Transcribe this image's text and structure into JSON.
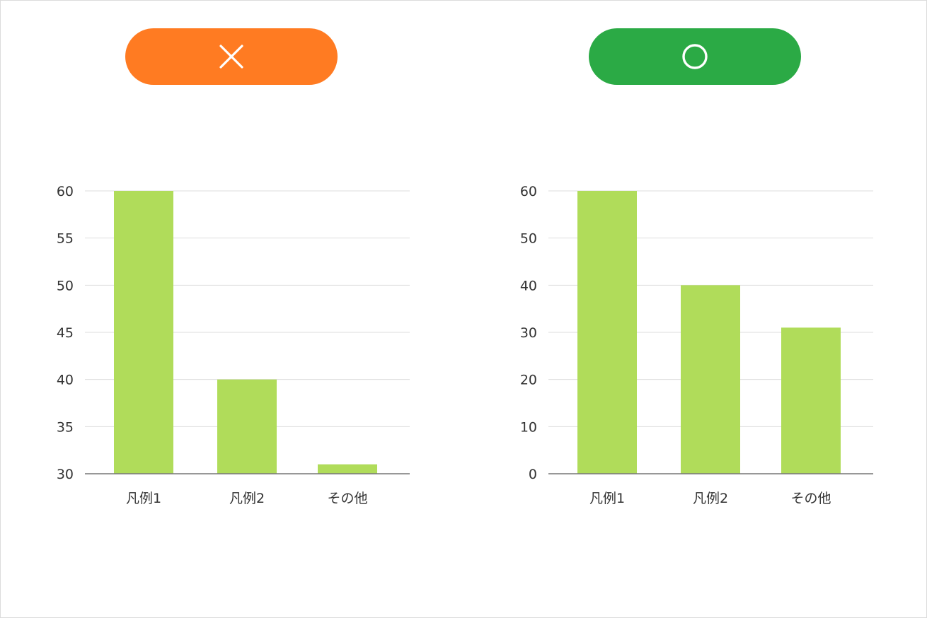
{
  "badges": {
    "bad": {
      "icon": "cross-icon",
      "color": "#FF7B22"
    },
    "good": {
      "icon": "circle-icon",
      "color": "#2BAA45"
    }
  },
  "colors": {
    "bar": "#B0DC5A",
    "grid": "#DDDDDD",
    "axis": "#777777",
    "text": "#333333"
  },
  "chart_data": [
    {
      "type": "bar",
      "title": "",
      "xlabel": "",
      "ylabel": "",
      "categories": [
        "凡例1",
        "凡例2",
        "その他"
      ],
      "values": [
        60,
        40,
        31
      ],
      "ylim": [
        30,
        60
      ],
      "yticks": [
        30,
        35,
        40,
        45,
        50,
        55,
        60
      ],
      "grid": true,
      "legend": "none"
    },
    {
      "type": "bar",
      "title": "",
      "xlabel": "",
      "ylabel": "",
      "categories": [
        "凡例1",
        "凡例2",
        "その他"
      ],
      "values": [
        60,
        40,
        31
      ],
      "ylim": [
        0,
        60
      ],
      "yticks": [
        0,
        10,
        20,
        30,
        40,
        50,
        60
      ],
      "grid": true,
      "legend": "none"
    }
  ]
}
